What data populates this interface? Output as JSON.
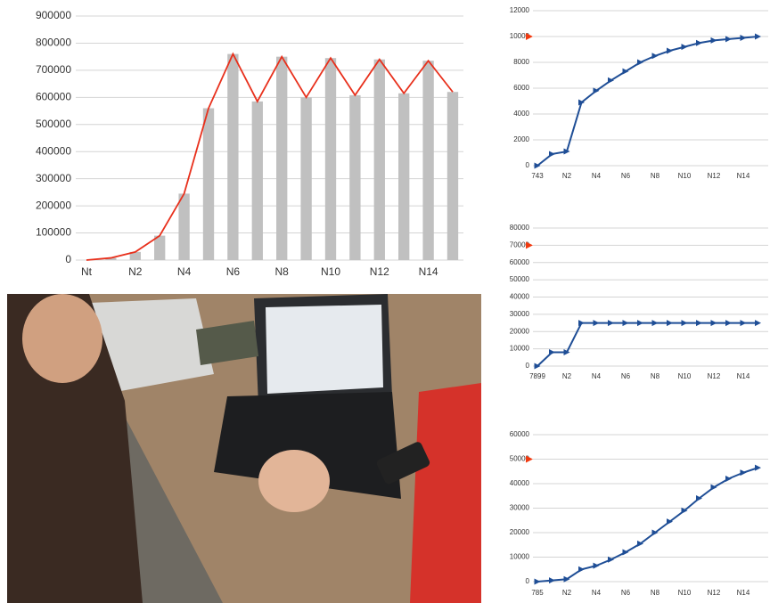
{
  "chart_data": [
    {
      "type": "bar",
      "categories": [
        "Nt",
        null,
        "N2",
        null,
        "N4",
        null,
        "N6",
        null,
        "N8",
        null,
        "N10",
        null,
        "N12",
        null,
        "N14",
        null
      ],
      "series": [
        {
          "type": "bar",
          "color": "#c0c0c0",
          "values": [
            0,
            8000,
            30000,
            90000,
            245000,
            560000,
            760000,
            585000,
            750000,
            600000,
            745000,
            608000,
            740000,
            615000,
            735000,
            620000
          ]
        },
        {
          "type": "line",
          "color": "#e8301c",
          "values": [
            0,
            8000,
            30000,
            90000,
            245000,
            560000,
            760000,
            585000,
            750000,
            600000,
            745000,
            608000,
            740000,
            615000,
            735000,
            620000
          ]
        }
      ],
      "ylim": [
        0,
        900000
      ],
      "yticks": [
        0,
        100000,
        200000,
        300000,
        400000,
        500000,
        600000,
        700000,
        800000,
        900000
      ],
      "grid": true
    },
    {
      "type": "line",
      "categories": [
        "743",
        null,
        "N2",
        null,
        "N4",
        null,
        "N6",
        null,
        "N8",
        null,
        "N10",
        null,
        "N12",
        null,
        "N14",
        null
      ],
      "series": [
        {
          "color": "#1f4e96",
          "values": [
            0,
            900,
            1100,
            4900,
            5800,
            6600,
            7300,
            8000,
            8500,
            8900,
            9200,
            9500,
            9700,
            9800,
            9900,
            10000
          ]
        }
      ],
      "marker": 10000,
      "marker_color": "#f03a10",
      "ylim": [
        0,
        12000
      ],
      "yticks": [
        0,
        2000,
        4000,
        6000,
        8000,
        10000,
        12000
      ],
      "grid": true
    },
    {
      "type": "line",
      "categories": [
        "7899",
        null,
        "N2",
        null,
        "N4",
        null,
        "N6",
        null,
        "N8",
        null,
        "N10",
        null,
        "N12",
        null,
        "N14",
        null
      ],
      "series": [
        {
          "color": "#1f4e96",
          "values": [
            0,
            8000,
            8000,
            25000,
            25000,
            25000,
            25000,
            25000,
            25000,
            25000,
            25000,
            25000,
            25000,
            25000,
            25000,
            25000
          ]
        }
      ],
      "marker": 70000,
      "marker_color": "#f03a10",
      "ylim": [
        0,
        80000
      ],
      "yticks": [
        0,
        10000,
        20000,
        30000,
        40000,
        50000,
        60000,
        70000,
        80000
      ],
      "grid": true
    },
    {
      "type": "line",
      "categories": [
        "785",
        null,
        "N2",
        null,
        "N4",
        null,
        "N6",
        null,
        "N8",
        null,
        "N10",
        null,
        "N12",
        null,
        "N14",
        null
      ],
      "series": [
        {
          "color": "#1f4e96",
          "values": [
            0,
            500,
            1000,
            5000,
            6500,
            9000,
            12000,
            15500,
            20000,
            24500,
            29000,
            34000,
            38500,
            42000,
            44500,
            46500
          ]
        }
      ],
      "marker": 50000,
      "marker_color": "#f03a10",
      "ylim": [
        0,
        60000
      ],
      "yticks": [
        0,
        10000,
        20000,
        30000,
        40000,
        50000,
        60000
      ],
      "grid": true
    }
  ]
}
